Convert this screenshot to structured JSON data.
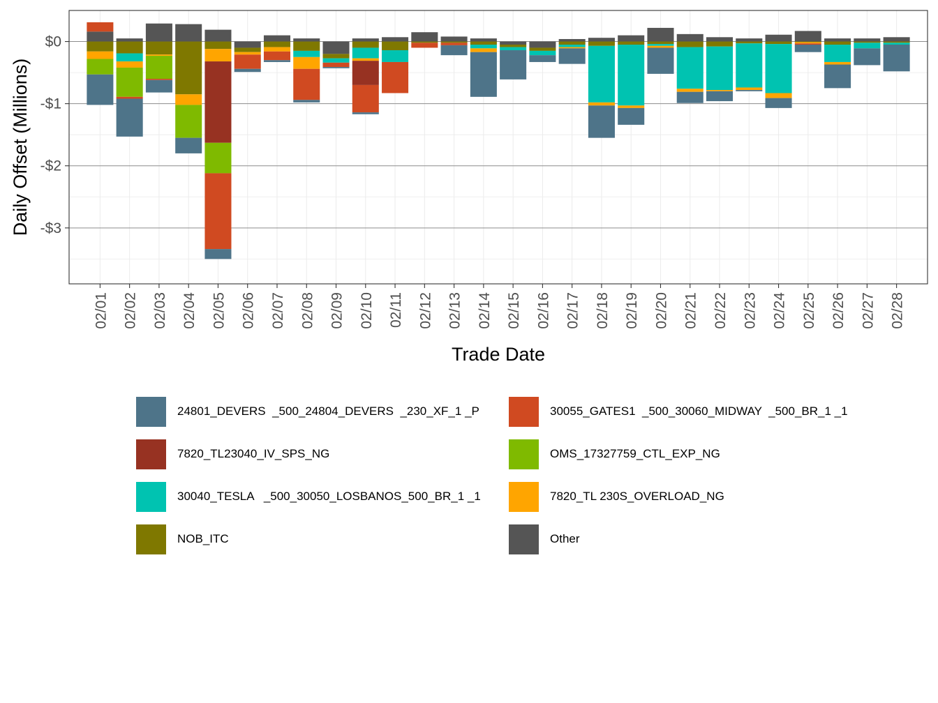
{
  "chart_data": {
    "type": "bar",
    "stacked": true,
    "title": "",
    "xlabel": "Trade Date",
    "ylabel": "Daily Offset (Millions)",
    "ylim": [
      -3.9,
      0.5
    ],
    "y_ticks": [
      0,
      -1,
      -2,
      -3
    ],
    "y_tick_labels": [
      "$0",
      "-$1",
      "-$2",
      "-$3"
    ],
    "grid": true,
    "legend_position": "bottom",
    "categories": [
      "02/01",
      "02/02",
      "02/03",
      "02/04",
      "02/05",
      "02/06",
      "02/07",
      "02/08",
      "02/09",
      "02/10",
      "02/11",
      "02/12",
      "02/13",
      "02/14",
      "02/15",
      "02/16",
      "02/17",
      "02/18",
      "02/19",
      "02/20",
      "02/21",
      "02/22",
      "02/23",
      "02/24",
      "02/25",
      "02/26",
      "02/27",
      "02/28"
    ],
    "stack_order": [
      "Other",
      "NOB_ITC",
      "30040_TESLA   _500_30050_LOSBANOS_500_BR_1 _1",
      "7820_TL 230S_OVERLOAD_NG",
      "7820_TL23040_IV_SPS_NG",
      "OMS_17327759_CTL_EXP_NG",
      "30055_GATES1  _500_30060_MIDWAY  _500_BR_1 _1",
      "24801_DEVERS  _500_24804_DEVERS  _230_XF_1 _P"
    ],
    "series": [
      {
        "name": "24801_DEVERS  _500_24804_DEVERS  _230_XF_1 _P",
        "color": "#4E7489",
        "values": [
          -0.49,
          -0.61,
          -0.2,
          -0.25,
          -0.16,
          -0.05,
          -0.03,
          -0.04,
          -0.02,
          -0.03,
          0,
          0,
          -0.16,
          -0.72,
          -0.47,
          -0.11,
          -0.25,
          -0.52,
          -0.27,
          -0.42,
          -0.18,
          -0.16,
          -0.02,
          -0.16,
          -0.12,
          -0.38,
          -0.27,
          -0.43
        ]
      },
      {
        "name": "30055_GATES1  _500_30060_MIDWAY  _500_BR_1 _1",
        "color": "#D04A21",
        "values": [
          0.15,
          -0.03,
          -0.02,
          0,
          -1.22,
          -0.23,
          -0.14,
          -0.5,
          -0.07,
          -0.44,
          -0.5,
          -0.08,
          -0.04,
          0,
          0,
          0,
          0,
          0,
          0,
          0,
          0,
          0,
          0,
          0,
          -0.02,
          0,
          0,
          0
        ]
      },
      {
        "name": "7820_TL23040_IV_SPS_NG",
        "color": "#973222",
        "values": [
          0,
          0,
          0,
          0,
          -1.31,
          0,
          0,
          0,
          0,
          -0.39,
          0,
          0,
          0,
          0,
          0,
          0,
          0,
          0,
          0,
          0,
          0,
          0,
          0,
          0,
          0,
          0,
          0,
          0
        ]
      },
      {
        "name": "OMS_17327759_CTL_EXP_NG",
        "color": "#7FBA00",
        "values": [
          -0.25,
          -0.47,
          -0.37,
          -0.53,
          -0.49,
          0,
          0,
          0,
          0,
          0,
          0,
          0,
          0,
          0,
          0,
          0,
          0,
          0,
          0,
          0,
          0,
          0,
          0,
          0,
          0,
          0,
          0,
          0
        ]
      },
      {
        "name": "30040_TESLA   _500_30050_LOSBANOS_500_BR_1 _1",
        "color": "#00C3B1",
        "values": [
          0,
          -0.13,
          0,
          0,
          0,
          0,
          0,
          -0.1,
          -0.07,
          -0.17,
          -0.19,
          0,
          0,
          -0.06,
          -0.05,
          -0.07,
          -0.04,
          -0.91,
          -0.98,
          -0.03,
          -0.67,
          -0.7,
          -0.71,
          -0.79,
          0,
          -0.28,
          -0.09,
          -0.03
        ]
      },
      {
        "name": "7820_TL 230S_OVERLOAD_NG",
        "color": "#FFA500",
        "values": [
          -0.12,
          -0.1,
          -0.02,
          -0.17,
          -0.2,
          -0.04,
          -0.07,
          -0.19,
          0,
          -0.04,
          0,
          0,
          0,
          -0.06,
          0,
          0,
          -0.02,
          -0.05,
          -0.04,
          -0.03,
          -0.05,
          -0.02,
          -0.04,
          -0.08,
          -0.02,
          -0.04,
          0,
          0
        ]
      },
      {
        "name": "NOB_ITC",
        "color": "#7F7800",
        "values": [
          -0.16,
          -0.19,
          -0.21,
          -0.85,
          -0.12,
          -0.07,
          -0.09,
          -0.15,
          -0.07,
          -0.1,
          -0.14,
          -0.02,
          -0.02,
          -0.05,
          -0.04,
          -0.05,
          -0.05,
          -0.07,
          -0.05,
          -0.04,
          -0.09,
          -0.08,
          -0.03,
          -0.04,
          -0.01,
          -0.05,
          -0.02,
          -0.02
        ]
      },
      {
        "name": "Other",
        "color": "#555555",
        "values": [
          0.16,
          0.05,
          0.29,
          0.28,
          0.19,
          -0.1,
          0.1,
          0.05,
          -0.2,
          0.05,
          0.07,
          0.15,
          0.08,
          0.05,
          -0.05,
          -0.1,
          0.04,
          0.06,
          0.1,
          0.22,
          0.12,
          0.07,
          0.05,
          0.11,
          0.17,
          0.05,
          0.05,
          0.07
        ]
      }
    ]
  }
}
